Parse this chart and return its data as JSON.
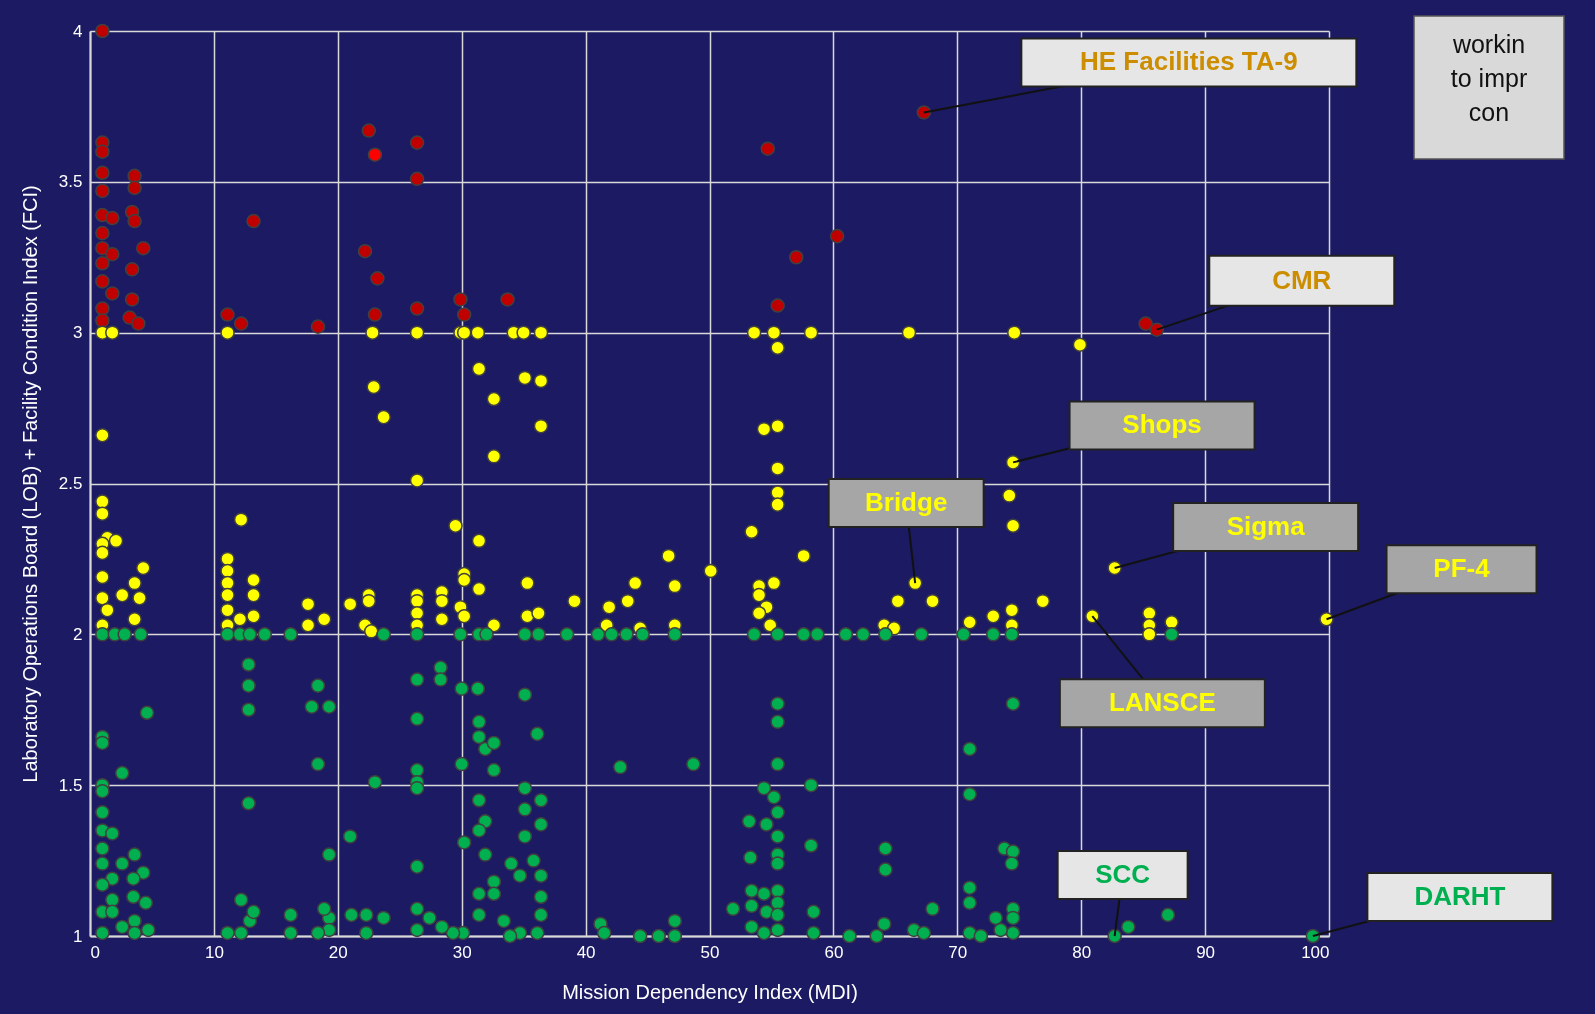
{
  "chart_data": {
    "type": "scatter",
    "xlabel": "Mission Dependency Index (MDI)",
    "ylabel": "Laboratory Operations Board (LOB) + Facility Condition Index (FCI)",
    "xlim": [
      0,
      100
    ],
    "xticks": [
      0,
      10,
      20,
      30,
      40,
      50,
      60,
      70,
      80,
      90,
      100
    ],
    "ylim": [
      1,
      4
    ],
    "yticks": [
      1,
      1.5,
      2,
      2.5,
      3,
      3.5,
      4
    ],
    "grid": true,
    "legend": false,
    "marker": "circle",
    "series": [
      {
        "color": "#c00000",
        "x": [
          1.0,
          1.0,
          1.0,
          1.0,
          1.0,
          3.6,
          3.6,
          1.0,
          1.8,
          3.4,
          3.6,
          1.0,
          1.0,
          1.8,
          4.3,
          1.0,
          3.4,
          1.0,
          1.8,
          3.4,
          1.0,
          3.2,
          1.0,
          3.9,
          11.1,
          12.2,
          13.2,
          18.4,
          22.5,
          26.4,
          26.4,
          22.2,
          23.2,
          23.0,
          26.4,
          29.9,
          30.2,
          33.7,
          54.7,
          67.3,
          60.3,
          57.0,
          55.5,
          85.2,
          86.1
        ],
        "values": [
          4.0,
          3.63,
          3.6,
          3.53,
          3.47,
          3.52,
          3.48,
          3.39,
          3.38,
          3.4,
          3.37,
          3.33,
          3.28,
          3.26,
          3.28,
          3.23,
          3.21,
          3.17,
          3.13,
          3.11,
          3.08,
          3.05,
          3.04,
          3.03,
          3.06,
          3.03,
          3.37,
          3.02,
          3.67,
          3.63,
          3.51,
          3.27,
          3.18,
          3.06,
          3.08,
          3.11,
          3.06,
          3.11,
          3.61,
          3.73,
          3.32,
          3.25,
          3.09,
          3.03,
          3.01
        ]
      },
      {
        "color": "#ff0000",
        "x": [
          23.0
        ],
        "values": [
          3.59
        ]
      },
      {
        "color": "#ffff00",
        "x": [
          1.0,
          1.8,
          11.1,
          22.8,
          26.4,
          29.9,
          30.2,
          31.3,
          34.2,
          35.0,
          36.4,
          53.6,
          55.2,
          58.2,
          66.1,
          74.6,
          31.4,
          22.9,
          23.7,
          32.6,
          35.1,
          36.4,
          36.4,
          32.6,
          26.4,
          1.0,
          1.0,
          1.0,
          55.5,
          54.4,
          55.5,
          55.5,
          55.5,
          55.5,
          74.5,
          74.2,
          74.5,
          79.9,
          82.7,
          76.9,
          80.9,
          85.5,
          85.5,
          85.5,
          87.3,
          99.8,
          1.4,
          2.1,
          1.0,
          1.0,
          12.2,
          11.1,
          11.1,
          11.1,
          11.1,
          11.1,
          11.1,
          13.2,
          13.2,
          12.1,
          13.2,
          1.0,
          1.0,
          1.4,
          2.6,
          3.6,
          4.3,
          4.0,
          3.6,
          1.0,
          17.6,
          17.6,
          18.9,
          21.0,
          22.5,
          22.5,
          22.2,
          22.7,
          26.4,
          26.4,
          26.4,
          26.4,
          28.4,
          28.4,
          28.4,
          29.5,
          31.4,
          30.2,
          30.2,
          31.4,
          29.9,
          30.2,
          32.6,
          35.3,
          35.3,
          36.2,
          53.4,
          46.7,
          50.1,
          57.6,
          44.0,
          47.2,
          39.1,
          41.9,
          43.4,
          41.7,
          44.4,
          47.2,
          54.0,
          55.2,
          54.0,
          54.6,
          54.0,
          54.9,
          66.6,
          65.2,
          68.0,
          64.1,
          64.9,
          71.0,
          72.9,
          74.4,
          74.4
        ],
        "values": [
          3,
          3,
          3,
          3,
          3,
          3,
          3,
          3,
          3,
          3,
          3,
          3,
          3,
          3,
          3,
          3,
          2.88,
          2.82,
          2.72,
          2.78,
          2.85,
          2.84,
          2.69,
          2.59,
          2.51,
          2.66,
          2.44,
          2.4,
          2.95,
          2.68,
          2.69,
          2.55,
          2.47,
          2.43,
          2.57,
          2.46,
          2.36,
          2.96,
          2.22,
          2.11,
          2.06,
          2.07,
          2.03,
          2.0,
          2.04,
          2.05,
          2.32,
          2.31,
          2.3,
          2.27,
          2.38,
          2.25,
          2.21,
          2.17,
          2.13,
          2.08,
          2.03,
          2.18,
          2.13,
          2.05,
          2.06,
          2.19,
          2.12,
          2.08,
          2.13,
          2.17,
          2.22,
          2.12,
          2.05,
          2.03,
          2.1,
          2.03,
          2.05,
          2.1,
          2.13,
          2.11,
          2.03,
          2.01,
          2.13,
          2.11,
          2.07,
          2.03,
          2.14,
          2.11,
          2.05,
          2.36,
          2.31,
          2.2,
          2.18,
          2.15,
          2.09,
          2.06,
          2.03,
          2.17,
          2.06,
          2.07,
          2.34,
          2.26,
          2.21,
          2.26,
          2.17,
          2.16,
          2.11,
          2.09,
          2.11,
          2.03,
          2.02,
          2.03,
          2.16,
          2.17,
          2.13,
          2.09,
          2.07,
          2.03,
          2.17,
          2.11,
          2.11,
          2.03,
          2.02,
          2.04,
          2.06,
          2.08,
          2.03
        ]
      },
      {
        "color": "#00b050",
        "x": [
          1.0,
          2.0,
          2.8,
          4.1,
          11.1,
          12.1,
          12.9,
          14.1,
          16.2,
          23.7,
          26.4,
          29.9,
          31.4,
          32.0,
          35.1,
          36.2,
          38.5,
          41.0,
          42.1,
          43.3,
          44.6,
          47.2,
          53.6,
          55.5,
          57.6,
          58.7,
          61.0,
          62.4,
          64.2,
          67.1,
          70.5,
          72.9,
          74.4,
          87.3,
          12.8,
          12.8,
          12.8,
          18.4,
          17.9,
          19.3,
          18.4,
          4.6,
          1.0,
          1.0,
          2.6,
          1.0,
          1.0,
          12.8,
          23.0,
          26.4,
          26.4,
          26.4,
          26.4,
          26.4,
          28.3,
          28.3,
          30.0,
          31.3,
          35.1,
          36.1,
          30.0,
          32.6,
          31.4,
          31.4,
          31.9,
          32.6,
          35.1,
          36.4,
          35.1,
          36.4,
          35.1,
          31.4,
          31.9,
          31.4,
          21.0,
          19.3,
          26.4,
          30.2,
          31.9,
          34.0,
          35.8,
          36.4,
          34.7,
          32.6,
          31.4,
          32.6,
          31.4,
          33.4,
          36.4,
          36.4,
          36.1,
          34.7,
          33.9,
          30.1,
          29.3,
          28.4,
          27.4,
          26.4,
          26.4,
          23.7,
          22.3,
          22.3,
          21.1,
          19.3,
          19.3,
          18.9,
          18.4,
          16.2,
          16.2,
          12.9,
          12.2,
          13.2,
          11.1,
          12.2,
          1.0,
          1.0,
          1.8,
          1.0,
          1.0,
          2.6,
          3.6,
          4.3,
          3.5,
          1.8,
          1.0,
          1.8,
          1.0,
          3.5,
          4.5,
          3.6,
          4.7,
          1.8,
          1.0,
          2.6,
          3.6,
          55.5,
          55.5,
          55.5,
          42.8,
          48.7,
          74.5,
          71.0,
          71.0,
          54.4,
          58.2,
          55.2,
          55.5,
          53.2,
          54.6,
          55.5,
          55.5,
          55.5,
          53.3,
          58.2,
          64.2,
          64.2,
          73.8,
          74.5,
          74.4,
          71.0,
          71.0,
          53.4,
          54.4,
          55.5,
          55.5,
          51.9,
          53.4,
          54.6,
          55.5,
          53.4,
          55.5,
          54.4,
          58.4,
          58.4,
          41.2,
          41.5,
          44.4,
          45.9,
          47.2,
          47.2,
          61.3,
          63.5,
          64.1,
          66.5,
          67.3,
          68.0,
          71.0,
          71.9,
          73.1,
          74.5,
          74.5,
          74.5,
          73.5,
          82.7,
          83.8,
          87.0,
          98.7
        ],
        "values": [
          2,
          2,
          2,
          2,
          2,
          2,
          2,
          2,
          2,
          2,
          2,
          2,
          2,
          2,
          2,
          2,
          2,
          2,
          2,
          2,
          2,
          2,
          2,
          2,
          2,
          2,
          2,
          2,
          2,
          2,
          2,
          2,
          2,
          2,
          1.9,
          1.83,
          1.75,
          1.83,
          1.76,
          1.76,
          1.57,
          1.74,
          1.66,
          1.64,
          1.54,
          1.5,
          1.48,
          1.44,
          1.51,
          1.85,
          1.72,
          1.55,
          1.51,
          1.49,
          1.89,
          1.85,
          1.82,
          1.82,
          1.8,
          1.67,
          1.57,
          1.55,
          1.71,
          1.66,
          1.62,
          1.64,
          1.49,
          1.45,
          1.42,
          1.37,
          1.33,
          1.45,
          1.38,
          1.35,
          1.33,
          1.27,
          1.23,
          1.31,
          1.27,
          1.24,
          1.25,
          1.2,
          1.2,
          1.18,
          1.14,
          1.14,
          1.07,
          1.05,
          1.13,
          1.07,
          1.01,
          1.01,
          1.0,
          1.01,
          1.01,
          1.03,
          1.06,
          1.09,
          1.02,
          1.06,
          1.07,
          1.01,
          1.07,
          1.06,
          1.02,
          1.09,
          1.01,
          1.07,
          1.01,
          1.05,
          1.12,
          1.08,
          1.01,
          1.01,
          1.41,
          1.35,
          1.34,
          1.29,
          1.24,
          1.24,
          1.27,
          1.21,
          1.19,
          1.19,
          1.17,
          1.12,
          1.08,
          1.13,
          1.11,
          1.05,
          1.02,
          1.08,
          1.01,
          1.03,
          1.01,
          1.77,
          1.71,
          1.57,
          1.56,
          1.57,
          1.77,
          1.62,
          1.47,
          1.49,
          1.5,
          1.46,
          1.41,
          1.38,
          1.37,
          1.33,
          1.27,
          1.24,
          1.26,
          1.3,
          1.29,
          1.22,
          1.29,
          1.28,
          1.24,
          1.16,
          1.11,
          1.15,
          1.14,
          1.15,
          1.11,
          1.09,
          1.1,
          1.08,
          1.07,
          1.03,
          1.02,
          1.01,
          1.08,
          1.01,
          1.04,
          1.01,
          1.0,
          1.0,
          1.05,
          1.0,
          1.0,
          1.0,
          1.04,
          1.02,
          1.01,
          1.09,
          1.01,
          1.0,
          1.06,
          1.09,
          1.06,
          1.01,
          1.02,
          1.0,
          1.03,
          1.07,
          1.0
        ]
      }
    ],
    "annotations": [
      {
        "text": "HE Facilities TA-9",
        "x": 67.3,
        "y": 3.73
      },
      {
        "text": "CMR",
        "x": 86.1,
        "y": 3.01
      },
      {
        "text": "Shops",
        "x": 74.5,
        "y": 2.57
      },
      {
        "text": "Bridge",
        "x": 66.6,
        "y": 2.17
      },
      {
        "text": "Sigma",
        "x": 82.7,
        "y": 2.22
      },
      {
        "text": "PF-4",
        "x": 99.8,
        "y": 2.05
      },
      {
        "text": "LANSCE",
        "x": 80.9,
        "y": 2.06
      },
      {
        "text": "SCC",
        "x": 82.7,
        "y": 1.0
      },
      {
        "text": "DARHT",
        "x": 98.7,
        "y": 1.0
      },
      "workin\nto impr\ncon"
    ]
  }
}
